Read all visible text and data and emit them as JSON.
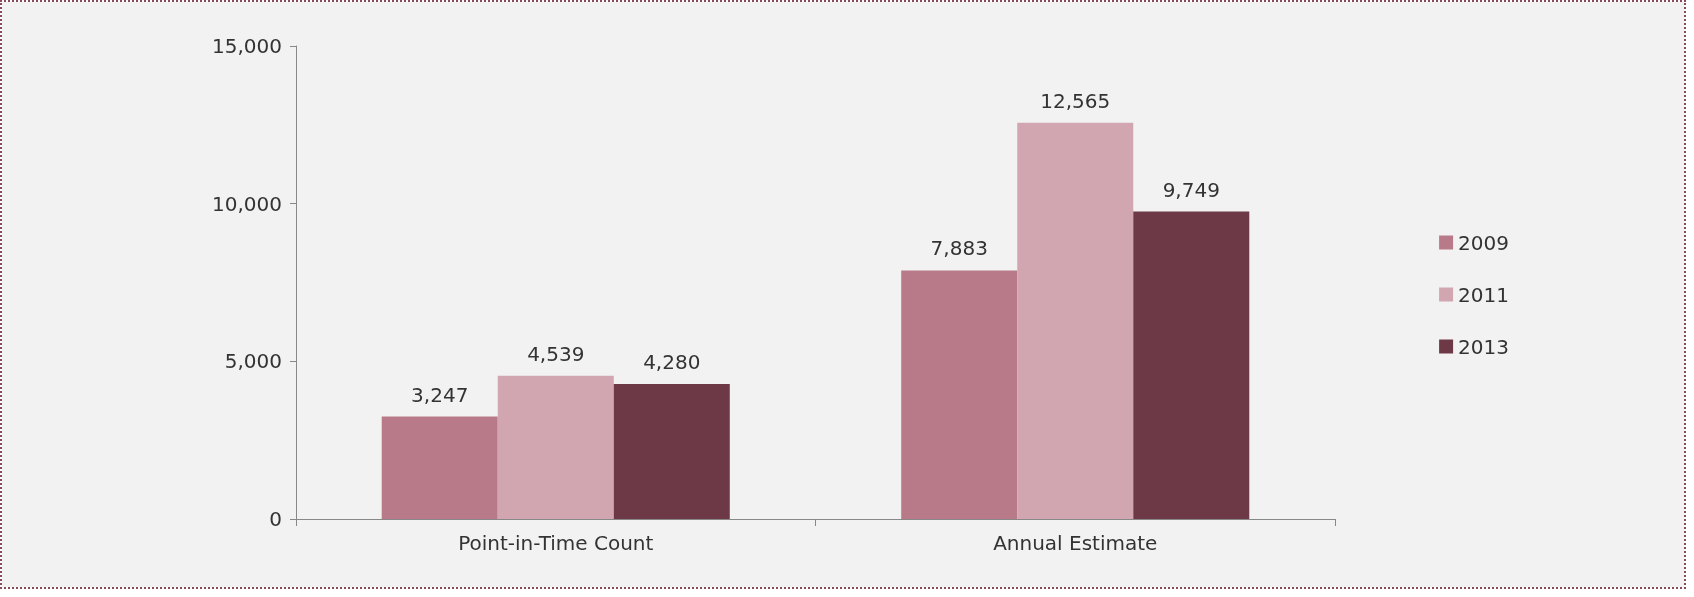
{
  "chart_data": {
    "type": "bar",
    "categories": [
      "Point-in-Time Count",
      "Annual Estimate"
    ],
    "series": [
      {
        "name": "2009",
        "color": "#b87a88",
        "values": [
          3247,
          7883
        ],
        "value_labels": [
          "3,247",
          "7,883"
        ]
      },
      {
        "name": "2011",
        "color": "#d1a6b0",
        "values": [
          4539,
          12565
        ],
        "value_labels": [
          "4,539",
          "12,565"
        ]
      },
      {
        "name": "2013",
        "color": "#6e3947",
        "values": [
          4280,
          9749
        ],
        "value_labels": [
          "4,280",
          "9,749"
        ]
      }
    ],
    "ylim": [
      0,
      15000
    ],
    "yticks": [
      {
        "value": 0,
        "label": "0"
      },
      {
        "value": 5000,
        "label": "5,000"
      },
      {
        "value": 10000,
        "label": "10,000"
      },
      {
        "value": 15000,
        "label": "15,000"
      }
    ],
    "grid": false,
    "legend": "right"
  }
}
